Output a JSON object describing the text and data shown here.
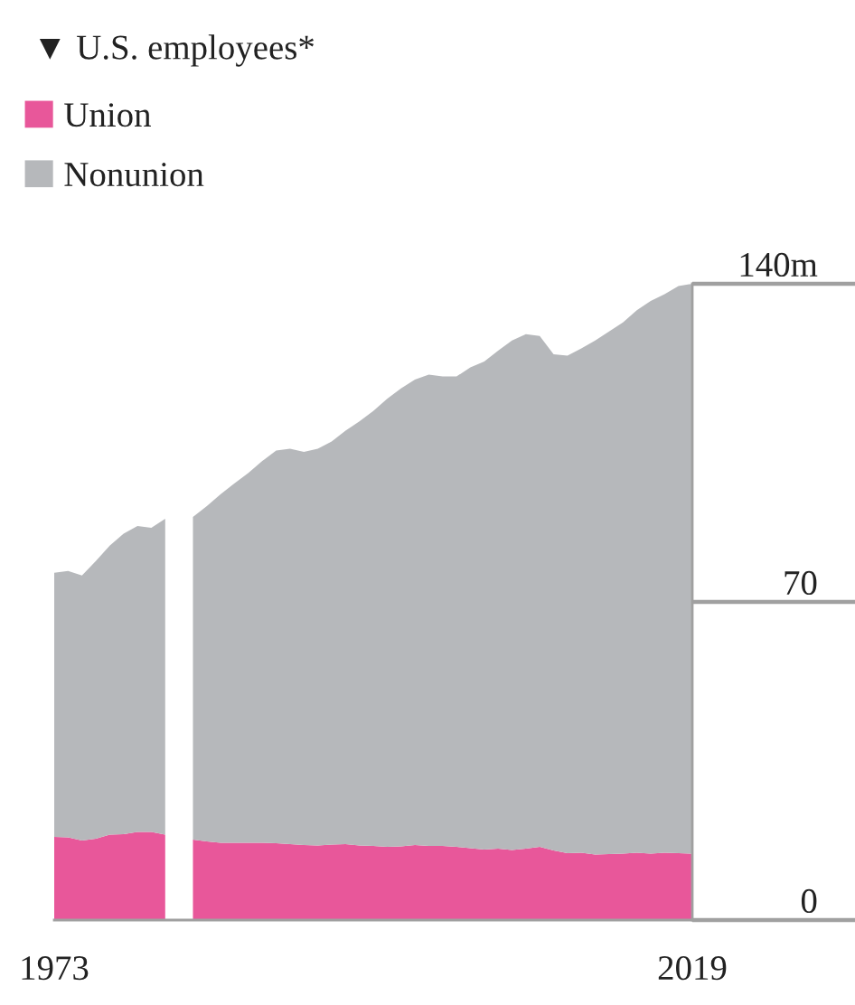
{
  "chart_data": {
    "type": "area",
    "stacked": true,
    "title": "▼ U.S. employees*",
    "x": [
      1973,
      1974,
      1975,
      1976,
      1977,
      1978,
      1979,
      1980,
      1981,
      1982,
      1983,
      1984,
      1985,
      1986,
      1987,
      1988,
      1989,
      1990,
      1991,
      1992,
      1993,
      1994,
      1995,
      1996,
      1997,
      1998,
      1999,
      2000,
      2001,
      2002,
      2003,
      2004,
      2005,
      2006,
      2007,
      2008,
      2009,
      2010,
      2011,
      2012,
      2013,
      2014,
      2015,
      2016,
      2017,
      2018,
      2019
    ],
    "series": [
      {
        "name": "Union",
        "color": "#e8579a",
        "values": [
          18.3,
          18.2,
          17.5,
          17.9,
          18.8,
          18.9,
          19.4,
          19.4,
          18.8,
          null,
          17.7,
          17.3,
          17.0,
          17.0,
          17.0,
          17.0,
          16.9,
          16.7,
          16.5,
          16.4,
          16.6,
          16.7,
          16.4,
          16.3,
          16.1,
          16.2,
          16.5,
          16.3,
          16.3,
          16.1,
          15.8,
          15.5,
          15.7,
          15.4,
          15.7,
          16.1,
          15.3,
          14.7,
          14.8,
          14.4,
          14.5,
          14.6,
          14.8,
          14.6,
          14.8,
          14.7,
          14.6
        ]
      },
      {
        "name": "Nonunion",
        "color": "#b6b8bb",
        "values": [
          58.1,
          58.6,
          58.3,
          61.1,
          63.6,
          66.1,
          67.3,
          66.9,
          69.5,
          null,
          71.0,
          73.8,
          76.7,
          79.1,
          81.4,
          84.0,
          86.4,
          87.0,
          86.5,
          87.3,
          88.7,
          91.0,
          93.3,
          95.7,
          98.6,
          100.8,
          102.4,
          103.7,
          103.3,
          103.5,
          105.8,
          107.4,
          109.6,
          112.1,
          113.2,
          112.4,
          109.2,
          109.5,
          111.0,
          113.1,
          115.0,
          116.9,
          119.4,
          121.6,
          122.9,
          124.8,
          125.4
        ]
      }
    ],
    "xlim": [
      1973,
      2019
    ],
    "xticks": [
      1973,
      2019
    ],
    "ylim": [
      0,
      140
    ],
    "yticks": [
      0,
      70,
      {
        "value": 140,
        "label": "140m"
      }
    ],
    "legend": "top left"
  }
}
